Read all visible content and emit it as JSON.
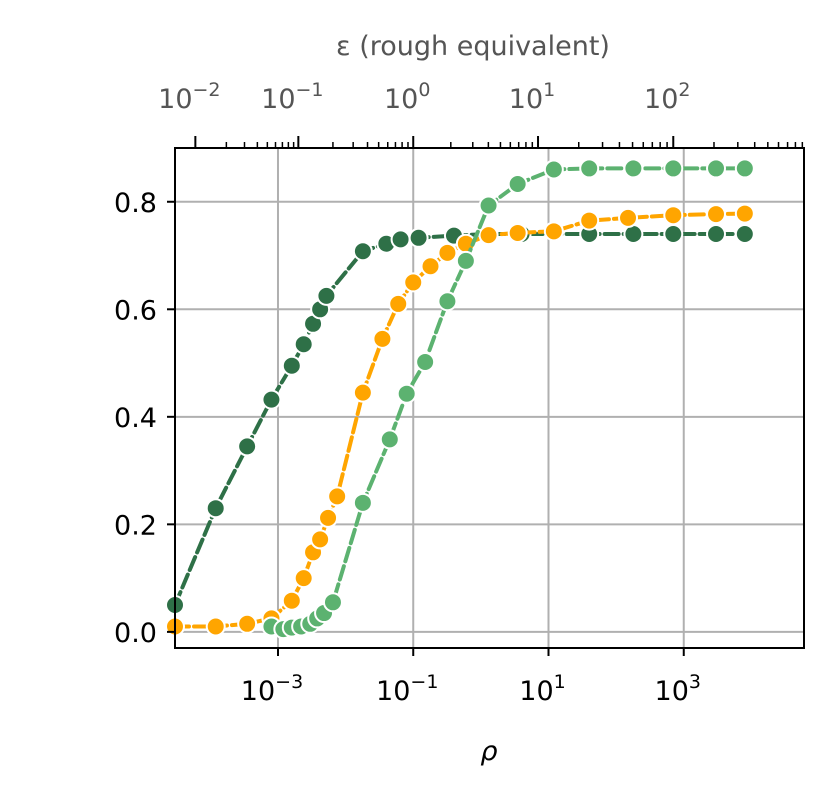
{
  "chart_data": {
    "type": "line",
    "xlabel": "ρ",
    "x_scale": "log",
    "xlim": [
      3e-05,
      60000
    ],
    "x_ticks": [
      {
        "value": 0.001,
        "base": "10",
        "exp": "−3"
      },
      {
        "value": 0.1,
        "base": "10",
        "exp": "−1"
      },
      {
        "value": 10,
        "base": "10",
        "exp": "1"
      },
      {
        "value": 1000,
        "base": "10",
        "exp": "3"
      }
    ],
    "top_axis": {
      "label": "ε (rough equivalent)",
      "ticks": [
        {
          "rho": 6e-05,
          "base": "10",
          "exp": "−2"
        },
        {
          "rho": 0.002,
          "base": "10",
          "exp": "−1"
        },
        {
          "rho": 0.1,
          "base": "10",
          "exp": "0"
        },
        {
          "rho": 7,
          "base": "10",
          "exp": "1"
        },
        {
          "rho": 700,
          "base": "10",
          "exp": "2"
        }
      ]
    },
    "ylabel": "",
    "ylim": [
      -0.03,
      0.9
    ],
    "y_ticks": [
      "0.0",
      "0.2",
      "0.4",
      "0.6",
      "0.8"
    ],
    "grid": true,
    "series": [
      {
        "color": "#2e7047",
        "x": [
          3e-05,
          0.00012,
          0.00035,
          0.0008,
          0.0016,
          0.0024,
          0.0033,
          0.0042,
          0.0052,
          0.018,
          0.04,
          0.065,
          0.12,
          0.4,
          1.3,
          4,
          40,
          180,
          700,
          3000,
          8000
        ],
        "y": [
          0.05,
          0.23,
          0.345,
          0.432,
          0.495,
          0.535,
          0.573,
          0.6,
          0.625,
          0.708,
          0.722,
          0.73,
          0.733,
          0.737,
          0.74,
          0.74,
          0.74,
          0.74,
          0.74,
          0.74,
          0.74
        ]
      },
      {
        "color": "#ffa500",
        "x": [
          3e-05,
          0.00012,
          0.00035,
          0.0008,
          0.0016,
          0.0024,
          0.0033,
          0.0042,
          0.0055,
          0.0075,
          0.018,
          0.035,
          0.06,
          0.1,
          0.18,
          0.32,
          0.6,
          1.3,
          3.5,
          12,
          40,
          150,
          700,
          3000,
          8000
        ],
        "y": [
          0.01,
          0.01,
          0.015,
          0.025,
          0.058,
          0.1,
          0.148,
          0.172,
          0.212,
          0.252,
          0.445,
          0.545,
          0.61,
          0.65,
          0.68,
          0.705,
          0.722,
          0.738,
          0.742,
          0.745,
          0.765,
          0.77,
          0.775,
          0.777,
          0.778
        ]
      },
      {
        "color": "#5cb270",
        "x": [
          0.0008,
          0.0012,
          0.0016,
          0.0022,
          0.003,
          0.0038,
          0.0048,
          0.0065,
          0.018,
          0.045,
          0.08,
          0.15,
          0.32,
          0.6,
          1.3,
          3.5,
          12,
          40,
          180,
          700,
          3000,
          8000
        ],
        "y": [
          0.01,
          0.005,
          0.008,
          0.01,
          0.015,
          0.025,
          0.035,
          0.055,
          0.24,
          0.358,
          0.443,
          0.502,
          0.615,
          0.69,
          0.793,
          0.833,
          0.86,
          0.862,
          0.862,
          0.862,
          0.862,
          0.862
        ]
      }
    ]
  }
}
